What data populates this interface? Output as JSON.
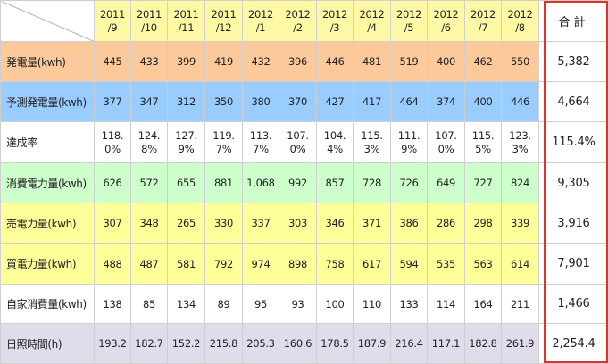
{
  "months": [
    {
      "year": "2011",
      "month": "/9"
    },
    {
      "year": "2011",
      "month": "/10"
    },
    {
      "year": "2011",
      "month": "/11"
    },
    {
      "year": "2011",
      "month": "/12"
    },
    {
      "year": "2012",
      "month": "/1"
    },
    {
      "year": "2012",
      "month": "/2"
    },
    {
      "year": "2012",
      "month": "/3"
    },
    {
      "year": "2012",
      "month": "/4"
    },
    {
      "year": "2012",
      "month": "/5"
    },
    {
      "year": "2012",
      "month": "/6"
    },
    {
      "year": "2012",
      "month": "/7"
    },
    {
      "year": "2012",
      "month": "/8"
    }
  ],
  "total_header": "合計",
  "colors": {
    "header_month": "#fff9a6",
    "frame": "#e0322d"
  },
  "rows": [
    {
      "label": "発電量(kwh)",
      "bg": "#fcc99b",
      "values": [
        "445",
        "433",
        "399",
        "419",
        "432",
        "396",
        "446",
        "481",
        "519",
        "400",
        "462",
        "550"
      ],
      "total": "5,382"
    },
    {
      "label": "予測発電量(kwh)",
      "bg": "#99ccff",
      "values": [
        "377",
        "347",
        "312",
        "350",
        "380",
        "370",
        "427",
        "417",
        "464",
        "374",
        "400",
        "446"
      ],
      "total": "4,664"
    },
    {
      "label": "達成率",
      "bg": "#ffffff",
      "wrap": true,
      "values": [
        "118.\n0%",
        "124.\n8%",
        "127.\n9%",
        "119.\n7%",
        "113.\n7%",
        "107.\n0%",
        "104.\n4%",
        "115.\n3%",
        "111.\n9%",
        "107.\n0%",
        "115.\n5%",
        "123.\n3%"
      ],
      "total": "115.4%"
    },
    {
      "label": "消費電力量(kwh)",
      "bg": "#ccffcc",
      "values": [
        "626",
        "572",
        "655",
        "881",
        "1,068",
        "992",
        "857",
        "728",
        "726",
        "649",
        "727",
        "824"
      ],
      "total": "9,305"
    },
    {
      "label": "売電力量(kwh)",
      "bg": "#ffff99",
      "values": [
        "307",
        "348",
        "265",
        "330",
        "337",
        "303",
        "346",
        "371",
        "386",
        "286",
        "298",
        "339"
      ],
      "total": "3,916"
    },
    {
      "label": "買電力量(kwh)",
      "bg": "#ffff99",
      "values": [
        "488",
        "487",
        "581",
        "792",
        "974",
        "898",
        "758",
        "617",
        "594",
        "535",
        "563",
        "614"
      ],
      "total": "7,901"
    },
    {
      "label": "自家消費量(kwh)",
      "bg": "#ffffff",
      "values": [
        "138",
        "85",
        "134",
        "89",
        "95",
        "93",
        "100",
        "110",
        "133",
        "114",
        "164",
        "211"
      ],
      "total": "1,466"
    },
    {
      "label": "日照時間(h)",
      "bg": "#e0dcec",
      "values": [
        "193.2",
        "182.7",
        "152.2",
        "215.8",
        "205.3",
        "160.6",
        "178.5",
        "187.9",
        "216.4",
        "117.1",
        "182.8",
        "261.9"
      ],
      "total": "2,254.4"
    }
  ]
}
